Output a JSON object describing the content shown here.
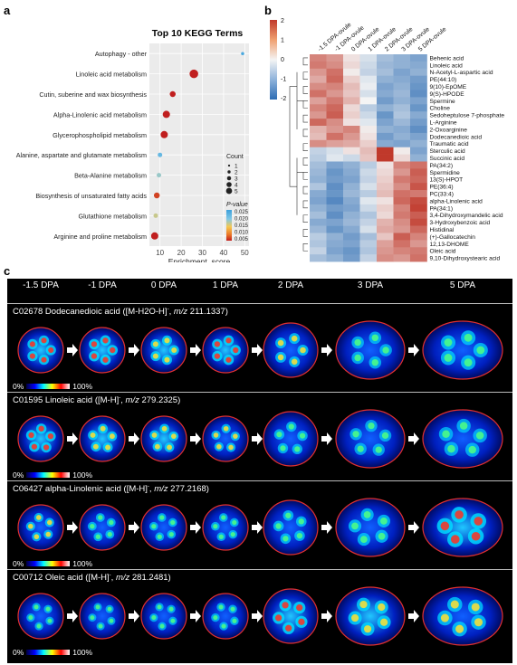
{
  "panel_a": {
    "letter": "a",
    "chart_data": {
      "type": "scatter",
      "title": "Top 10 KEGG Terms",
      "xlabel": "Enrichment_score",
      "ylabel": "",
      "xlim": [
        5,
        52
      ],
      "xticks": [
        10,
        20,
        30,
        40,
        50
      ],
      "categories": [
        "Autophagy - other",
        "Linoleic acid metabolism",
        "Cutin, suberine and wax biosynthesis",
        "Alpha-Linolenic acid metabolism",
        "Glycerophospholipid metabolism",
        "Alanine, aspartate and glutamate metabolism",
        "Beta-Alanine metabolism",
        "Biosynthesis of unsaturated fatty acids",
        "Glutathione metabolism",
        "Arginine and proline metabolism"
      ],
      "points": [
        {
          "x": 49,
          "count": 1,
          "p": 0.024
        },
        {
          "x": 26,
          "count": 5,
          "p": 0.003
        },
        {
          "x": 16,
          "count": 3,
          "p": 0.004
        },
        {
          "x": 13,
          "count": 4,
          "p": 0.004
        },
        {
          "x": 12,
          "count": 4,
          "p": 0.005
        },
        {
          "x": 10,
          "count": 2,
          "p": 0.022
        },
        {
          "x": 9.5,
          "count": 2,
          "p": 0.019
        },
        {
          "x": 8.5,
          "count": 3,
          "p": 0.007
        },
        {
          "x": 8,
          "count": 2,
          "p": 0.017
        },
        {
          "x": 7.5,
          "count": 4,
          "p": 0.004
        }
      ],
      "legend_count_title": "Count",
      "legend_count_values": [
        "1",
        "2",
        "3",
        "4",
        "5"
      ],
      "legend_p_title": "P-value",
      "legend_p_ticks": [
        "0.025",
        "0.020",
        "0.015",
        "0.010",
        "0.005"
      ]
    }
  },
  "panel_b": {
    "letter": "b",
    "chart_data": {
      "type": "heatmap",
      "columns": [
        "-1.5 DPA-ovule",
        "-1 DPA-ovule",
        "0 DPA-ovule",
        "1 DPA-ovule",
        "2 DPA-ovule",
        "3 DPA-ovule",
        "5 DPA-ovule"
      ],
      "rows": [
        "Behenic acid",
        "Linoleic acid",
        "N-Acetyl-L-aspartic acid",
        "PE(44:10)",
        "9(10)-EpOME",
        "9(S)-HPODE",
        "Spermine",
        "Choline",
        "Sedoheptulose 7-phosphate",
        "L-Arginine",
        "2-Oxoarginine",
        "Dodecanedioic acid",
        "Traumatic acid",
        "Sterculic acid",
        "Succinic acid",
        "PA(34:2)",
        "Spermidine",
        "13(S)-HPOT",
        "PE(36:4)",
        "PC(33:4)",
        "alpha-Linolenic acid",
        "PA(34:1)",
        "3,4-Dihydroxymandelic acid",
        "3-Hydroxybenzoic acid",
        "Histidinal",
        "(+)-Gallocatechin",
        "12,13-DHOME",
        "Oleic acid",
        "9,10-Dihydroxystearic acid"
      ],
      "values": [
        [
          1.2,
          1.0,
          0.2,
          -0.3,
          -0.8,
          -1.0,
          -1.2
        ],
        [
          1.3,
          1.1,
          0.3,
          -0.4,
          -0.9,
          -1.0,
          -1.1
        ],
        [
          1.0,
          1.4,
          0.1,
          -0.5,
          -0.8,
          -1.2,
          -1.0
        ],
        [
          0.8,
          1.5,
          0.4,
          -0.2,
          -1.0,
          -1.1,
          -1.3
        ],
        [
          1.1,
          1.2,
          0.6,
          -0.1,
          -1.2,
          -1.0,
          -1.4
        ],
        [
          1.4,
          1.0,
          0.5,
          -0.3,
          -1.1,
          -0.9,
          -1.5
        ],
        [
          0.9,
          1.3,
          0.7,
          0.0,
          -1.3,
          -1.0,
          -1.2
        ],
        [
          1.2,
          1.5,
          0.3,
          -0.6,
          -1.0,
          -0.8,
          -1.4
        ],
        [
          1.0,
          1.6,
          0.4,
          -0.4,
          -1.4,
          -0.7,
          -1.1
        ],
        [
          1.5,
          1.1,
          0.2,
          -0.2,
          -1.2,
          -0.9,
          -1.3
        ],
        [
          0.7,
          1.0,
          1.2,
          0.1,
          -1.0,
          -1.1,
          -1.5
        ],
        [
          0.6,
          1.4,
          1.0,
          0.2,
          -1.3,
          -1.0,
          -1.2
        ],
        [
          1.1,
          0.9,
          0.8,
          0.4,
          -1.1,
          -1.2,
          -1.0
        ],
        [
          -0.5,
          -0.3,
          0.2,
          0.6,
          2.0,
          0.1,
          -1.2
        ],
        [
          -0.6,
          -0.2,
          -0.4,
          0.5,
          2.2,
          0.3,
          -1.0
        ],
        [
          -0.8,
          -1.2,
          -1.0,
          -0.6,
          0.2,
          1.2,
          1.4
        ],
        [
          -0.9,
          -1.4,
          -1.1,
          -0.4,
          0.3,
          1.0,
          1.6
        ],
        [
          -1.0,
          -1.3,
          -1.2,
          -0.5,
          0.4,
          1.3,
          1.5
        ],
        [
          -0.7,
          -1.5,
          -1.0,
          -0.3,
          0.5,
          1.1,
          1.7
        ],
        [
          -1.1,
          -1.4,
          -0.9,
          -0.6,
          0.6,
          1.4,
          1.3
        ],
        [
          -1.2,
          -1.6,
          -1.1,
          -0.2,
          0.2,
          1.5,
          1.8
        ],
        [
          -1.0,
          -1.3,
          -1.2,
          -0.4,
          0.4,
          1.2,
          1.9
        ],
        [
          -0.8,
          -1.5,
          -1.0,
          -0.7,
          0.3,
          1.3,
          1.6
        ],
        [
          -1.1,
          -1.2,
          -0.9,
          -0.5,
          0.7,
          1.1,
          1.8
        ],
        [
          -0.9,
          -1.4,
          -1.1,
          -0.3,
          0.8,
          1.0,
          1.5
        ],
        [
          -0.6,
          -1.0,
          -1.3,
          -0.8,
          0.5,
          1.6,
          1.2
        ],
        [
          -0.7,
          -1.1,
          -1.2,
          -0.6,
          0.9,
          1.4,
          1.0
        ],
        [
          -0.5,
          -1.2,
          -1.4,
          -0.7,
          1.0,
          1.2,
          1.3
        ],
        [
          -0.8,
          -1.0,
          -1.3,
          -0.5,
          1.1,
          1.0,
          1.4
        ]
      ],
      "legend_ticks": [
        "2",
        "1",
        "0",
        "-1",
        "-2"
      ],
      "colors": {
        "high": "#c0392b",
        "mid": "#f4f4f4",
        "low": "#2e6db4"
      }
    }
  },
  "panel_c": {
    "letter": "c",
    "stages": [
      "-1.5 DPA",
      "-1 DPA",
      "0 DPA",
      "1 DPA",
      "2 DPA",
      "3 DPA",
      "5 DPA"
    ],
    "rows": [
      {
        "code": "C02678",
        "title_pre": "Dodecanedioic acid ([M-H2O-H]",
        "title_sup": "-",
        "title_mid": ", ",
        "title_mz": "m/z",
        "title_post": " 211.1337)",
        "intensity": [
          0.8,
          0.9,
          0.75,
          0.85,
          0.6,
          0.35,
          0.5
        ]
      },
      {
        "code": "C01595",
        "title_pre": "Linoleic acid ([M-H]",
        "title_sup": "-",
        "title_mid": ", ",
        "title_mz": "m/z",
        "title_post": " 279.2325)",
        "intensity": [
          0.85,
          0.7,
          0.65,
          0.55,
          0.45,
          0.3,
          0.35
        ]
      },
      {
        "code": "C06427",
        "title_pre": "alpha-Linolenic acid ([M-H]",
        "title_sup": "-",
        "title_mid": ", ",
        "title_mz": "m/z",
        "title_post": " 277.2168)",
        "intensity": [
          0.55,
          0.45,
          0.4,
          0.4,
          0.5,
          0.5,
          0.85
        ]
      },
      {
        "code": "C00712",
        "title_pre": "Oleic acid ([M-H]",
        "title_sup": "-",
        "title_mid": ", ",
        "title_mz": "m/z",
        "title_post": " 281.2481)",
        "intensity": [
          0.3,
          0.25,
          0.3,
          0.35,
          0.9,
          0.7,
          0.6
        ]
      }
    ],
    "cbar_min": "0%",
    "cbar_max": "100%"
  }
}
